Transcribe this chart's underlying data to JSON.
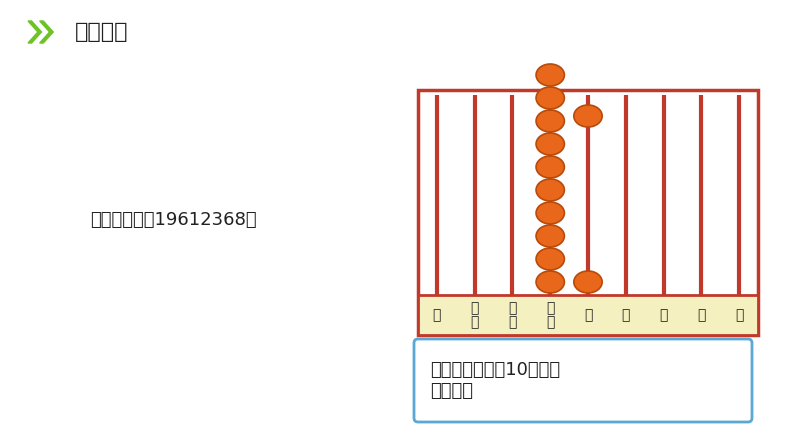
{
  "bg_color": "#ffffff",
  "title_text": "探究新知",
  "title_fontsize": 16,
  "chevron_color": "#6dc224",
  "population_text": "北京市人口：19612368人",
  "population_fontsize": 13,
  "num_columns": 9,
  "rod_color": "#c0392b",
  "bead_color": "#e8671a",
  "bead_outline": "#b84a0a",
  "frame_color": "#c0392b",
  "frame_bg": "#f5f0c0",
  "label_col_labels_top": [
    "亿",
    "千",
    "百",
    "十",
    "万",
    "千",
    "百",
    "十",
    "个"
  ],
  "label_col_labels_bot": [
    "",
    "万",
    "万",
    "万",
    "",
    "",
    "",
    "",
    ""
  ],
  "bead_columns": [
    0,
    0,
    0,
    10,
    1,
    0,
    0,
    0,
    0
  ],
  "bead_col_top_bead": [
    0,
    0,
    0,
    0,
    1,
    0,
    0,
    0,
    0
  ],
  "info_box_text": "一万一万地数，10个一万\n是十万。",
  "info_box_color": "#5ba8d4",
  "info_box_bg": "#ffffff",
  "info_fontsize": 13
}
